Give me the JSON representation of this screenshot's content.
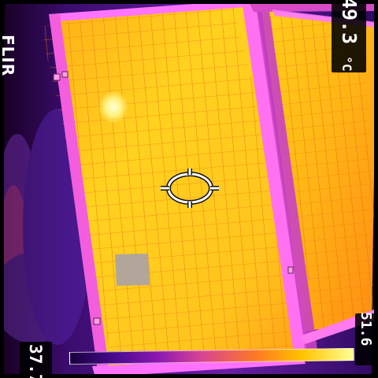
{
  "app": {
    "brand_label": "FLIR"
  },
  "readouts": {
    "center_temperature": "49.3",
    "temperature_unit": "°C",
    "scale_max": "51.6",
    "scale_min": "37.7"
  },
  "icons": {
    "brand": "flir-logo-icon",
    "spot": "crosshair-spot-meter-icon",
    "hot_glare": "hot-spot-highlight-icon",
    "anomaly": "cell-anomaly-icon"
  },
  "colors": {
    "background": "#000000",
    "cold": "#18004a",
    "cool": "#5a1598",
    "mid": "#d84396",
    "warm": "#ff9f1a",
    "hot": "#ffe33a",
    "frame_highlight": "#ff76ff",
    "text": "#ffffff"
  }
}
